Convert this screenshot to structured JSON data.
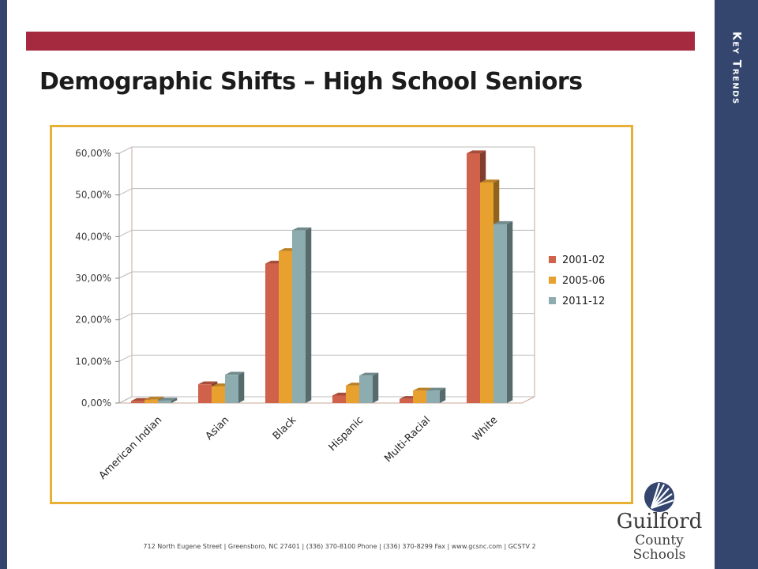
{
  "slide": {
    "section_label": "Key Trends",
    "title": "Demographic Shifts – High School Seniors",
    "footer": "712 North Eugene Street  |  Greensboro, NC 27401  |  (336) 370-8100 Phone  |  (336) 370-8299 Fax  |  www.gcsnc.com  |  GCSTV 2",
    "logo": {
      "line1": "Guilford",
      "line2": "County Schools"
    },
    "colors": {
      "navy": "#34456e",
      "red": "#a52a3f",
      "gold": "#e8b136"
    }
  },
  "chart_data": {
    "type": "bar",
    "categories": [
      "American Indian",
      "Asian",
      "Black",
      "Hispanic",
      "Multi-Racial",
      "White"
    ],
    "series": [
      {
        "name": "2001-02",
        "color": "#d0614a",
        "values": [
          0.5,
          4.5,
          33.5,
          1.8,
          1.0,
          60.0
        ]
      },
      {
        "name": "2005-06",
        "color": "#e8a02e",
        "values": [
          0.8,
          4.0,
          36.5,
          4.2,
          3.0,
          53.0
        ]
      },
      {
        "name": "2011-12",
        "color": "#8dacaf",
        "values": [
          0.6,
          6.8,
          41.5,
          6.6,
          3.0,
          43.0
        ]
      }
    ],
    "ylim": [
      0,
      60
    ],
    "y_ticks": [
      "0,00%",
      "10,00%",
      "20,00%",
      "30,00%",
      "40,00%",
      "50,00%",
      "60,00%"
    ],
    "grid": true,
    "legend_position": "right"
  }
}
